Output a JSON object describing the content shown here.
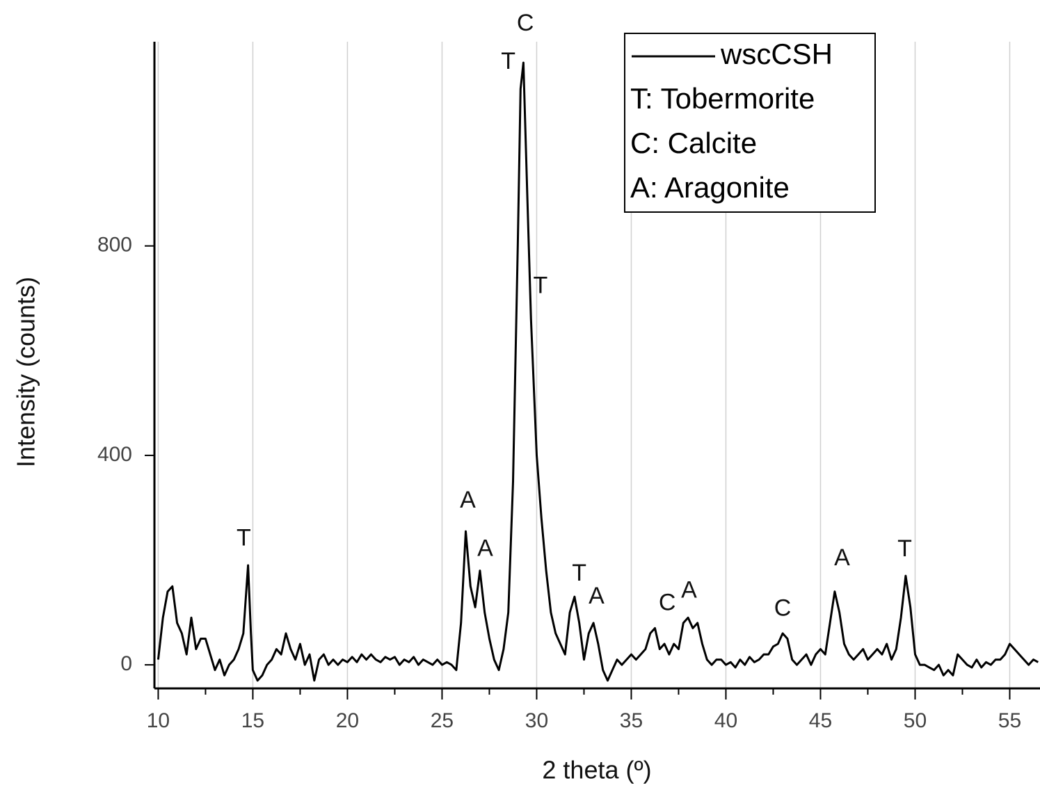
{
  "chart_data": {
    "type": "line",
    "xlabel": "2 theta (º)",
    "ylabel": "Intensity (counts)",
    "xlim": [
      9.8,
      56.6
    ],
    "ylim": [
      -45,
      1190
    ],
    "xticks": [
      10,
      15,
      20,
      25,
      30,
      35,
      40,
      45,
      50,
      55
    ],
    "xminorticks": [
      12.5,
      17.5,
      22.5,
      27.5,
      32.5,
      37.5,
      42.5,
      47.5,
      52.5
    ],
    "yticks": [
      0,
      400,
      800
    ],
    "grid": true,
    "legend": "upper right",
    "legend_notes": [
      "T: Tobermorite",
      "C: Calcite",
      "A: Aragonite"
    ],
    "x": [
      10.0,
      10.25,
      10.5,
      10.75,
      11.0,
      11.25,
      11.5,
      11.75,
      12.0,
      12.25,
      12.5,
      12.75,
      13.0,
      13.25,
      13.5,
      13.75,
      14.0,
      14.25,
      14.5,
      14.75,
      14.9,
      15.0,
      15.25,
      15.5,
      15.75,
      16.0,
      16.25,
      16.5,
      16.75,
      17.0,
      17.25,
      17.5,
      17.75,
      18.0,
      18.25,
      18.5,
      18.75,
      19.0,
      19.25,
      19.5,
      19.75,
      20.0,
      20.25,
      20.5,
      20.75,
      21.0,
      21.25,
      21.5,
      21.75,
      22.0,
      22.25,
      22.5,
      22.75,
      23.0,
      23.25,
      23.5,
      23.75,
      24.0,
      24.25,
      24.5,
      24.75,
      25.0,
      25.25,
      25.5,
      25.75,
      26.0,
      26.25,
      26.5,
      26.75,
      27.0,
      27.25,
      27.5,
      27.75,
      28.0,
      28.25,
      28.5,
      28.75,
      29.0,
      29.15,
      29.3,
      29.5,
      29.7,
      30.0,
      30.25,
      30.5,
      30.75,
      31.0,
      31.25,
      31.5,
      31.75,
      32.0,
      32.25,
      32.5,
      32.75,
      33.0,
      33.25,
      33.5,
      33.75,
      34.0,
      34.25,
      34.5,
      34.75,
      35.0,
      35.25,
      35.5,
      35.75,
      36.0,
      36.25,
      36.5,
      36.75,
      37.0,
      37.25,
      37.5,
      37.75,
      38.0,
      38.25,
      38.5,
      38.75,
      39.0,
      39.25,
      39.5,
      39.75,
      40.0,
      40.25,
      40.5,
      40.75,
      41.0,
      41.25,
      41.5,
      41.75,
      42.0,
      42.25,
      42.5,
      42.75,
      43.0,
      43.25,
      43.5,
      43.75,
      44.0,
      44.25,
      44.5,
      44.75,
      45.0,
      45.25,
      45.5,
      45.75,
      46.0,
      46.25,
      46.5,
      46.75,
      47.0,
      47.25,
      47.5,
      47.75,
      48.0,
      48.25,
      48.5,
      48.75,
      49.0,
      49.25,
      49.5,
      49.75,
      50.0,
      50.25,
      50.5,
      50.75,
      51.0,
      51.25,
      51.5,
      51.75,
      52.0,
      52.25,
      52.5,
      52.75,
      53.0,
      53.25,
      53.5,
      53.75,
      54.0,
      54.25,
      54.5,
      54.75,
      55.0,
      55.25,
      55.5,
      55.75,
      56.0,
      56.25,
      56.5
    ],
    "series": [
      {
        "name": "wscCSH",
        "color": "#000000",
        "values": [
          10,
          90,
          140,
          150,
          80,
          60,
          20,
          90,
          30,
          50,
          50,
          20,
          -10,
          10,
          -20,
          0,
          10,
          30,
          60,
          190,
          60,
          -10,
          -30,
          -20,
          0,
          10,
          30,
          20,
          60,
          30,
          10,
          40,
          0,
          20,
          -30,
          10,
          20,
          0,
          10,
          0,
          10,
          5,
          15,
          5,
          20,
          10,
          20,
          10,
          5,
          15,
          10,
          15,
          0,
          10,
          5,
          15,
          0,
          10,
          5,
          0,
          10,
          0,
          5,
          0,
          -10,
          80,
          255,
          150,
          110,
          180,
          100,
          50,
          10,
          -10,
          30,
          100,
          350,
          800,
          1100,
          1150,
          900,
          660,
          400,
          280,
          180,
          100,
          60,
          40,
          20,
          100,
          130,
          80,
          10,
          60,
          80,
          40,
          -10,
          -30,
          -10,
          10,
          0,
          10,
          20,
          10,
          20,
          30,
          60,
          70,
          30,
          40,
          20,
          40,
          30,
          80,
          90,
          70,
          80,
          40,
          10,
          0,
          10,
          10,
          0,
          5,
          -5,
          10,
          0,
          15,
          5,
          10,
          20,
          20,
          35,
          40,
          60,
          50,
          10,
          0,
          10,
          20,
          0,
          20,
          30,
          20,
          80,
          140,
          100,
          40,
          20,
          10,
          20,
          30,
          10,
          20,
          30,
          20,
          40,
          10,
          30,
          90,
          170,
          110,
          20,
          0,
          0,
          -5,
          -10,
          0,
          -20,
          -10,
          -20,
          20,
          10,
          0,
          -5,
          10,
          -5,
          5,
          0,
          10,
          10,
          20,
          40,
          30,
          20,
          10,
          0,
          10,
          5
        ]
      }
    ],
    "annotations": [
      {
        "text": "T",
        "x": 14.52,
        "y": 240
      },
      {
        "text": "A",
        "x": 26.36,
        "y": 312
      },
      {
        "text": "A",
        "x": 27.28,
        "y": 220
      },
      {
        "text": "T",
        "x": 28.5,
        "y": 1150
      },
      {
        "text": "C",
        "x": 29.4,
        "y": 1223
      },
      {
        "text": "T",
        "x": 30.2,
        "y": 722
      },
      {
        "text": "T",
        "x": 32.25,
        "y": 173
      },
      {
        "text": "A",
        "x": 33.16,
        "y": 129
      },
      {
        "text": "C",
        "x": 36.9,
        "y": 116
      },
      {
        "text": "A",
        "x": 38.05,
        "y": 140
      },
      {
        "text": "C",
        "x": 43.0,
        "y": 106
      },
      {
        "text": "A",
        "x": 46.14,
        "y": 202
      },
      {
        "text": "T",
        "x": 49.45,
        "y": 219
      }
    ]
  }
}
